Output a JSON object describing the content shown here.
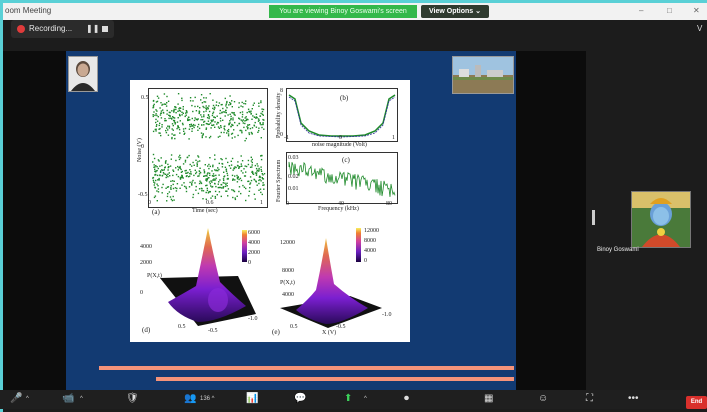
{
  "window": {
    "title": "oom Meeting",
    "controls": [
      "–",
      "□",
      "✕"
    ]
  },
  "share": {
    "banner": "You are viewing Binoy Goswami's screen",
    "view_options": "View Options ⌄"
  },
  "recording": {
    "label": "Recording...",
    "pause": "❚❚"
  },
  "right_edge": {
    "label": "V"
  },
  "figure": {
    "panel_a": {
      "tag": "(a)",
      "ylabel": "Noise (V)",
      "xlabel": "Time (sec)",
      "yticks": [
        "0.5",
        "0.25",
        "0",
        "-0.25",
        "-0.5"
      ],
      "xticks": [
        "0",
        "0.2",
        "0.4",
        "0.6",
        "0.8",
        "1"
      ]
    },
    "panel_b": {
      "tag": "(b)",
      "ylabel": "Probability density",
      "xlabel": "noise magnitude (Volt)",
      "yticks": [
        "8",
        "6",
        "4",
        "2",
        "0"
      ],
      "xticks": [
        "-1",
        "-0.5",
        "0",
        "0.5",
        "1"
      ]
    },
    "panel_c": {
      "tag": "(c)",
      "ylabel": "Fourier Spectrum",
      "xlabel": "Frequency (kHz)",
      "yticks": [
        "0.03",
        "0.02",
        "0.01",
        "0"
      ],
      "xticks": [
        "0",
        "20",
        "40",
        "60",
        "80"
      ]
    },
    "panel_d": {
      "tag": "(d)",
      "ylabel": "P(X,t)",
      "xlabel": "X (V)",
      "cbar": [
        "6000",
        "4000",
        "2000",
        "0"
      ],
      "ticks": [
        "4000",
        "2000",
        "0",
        "0.5",
        "0",
        "-0.5",
        "-1.0"
      ]
    },
    "panel_e": {
      "tag": "(e)",
      "ylabel": "P(X,t)",
      "xlabel": "X (V)",
      "cbar": [
        "12000",
        "8000",
        "4000",
        "0"
      ],
      "ticks": [
        "12000",
        "8000",
        "4000",
        "0.5",
        "0",
        "-0.5",
        "-1.0"
      ]
    }
  },
  "participant": {
    "name": "Binoy Goswami"
  },
  "toolbar": {
    "items": [
      {
        "icon": "🎤",
        "label": "^"
      },
      {
        "icon": "📹",
        "label": "^"
      },
      {
        "icon": "🛡",
        "label": ""
      },
      {
        "icon": "👥",
        "label": "136 ^"
      },
      {
        "icon": "📊",
        "label": ""
      },
      {
        "icon": "💬",
        "label": ""
      },
      {
        "icon": "⬆",
        "label": "^"
      },
      {
        "icon": "⏺",
        "label": ""
      },
      {
        "icon": "▦",
        "label": ""
      },
      {
        "icon": "☺",
        "label": ""
      },
      {
        "icon": "⛶",
        "label": ""
      },
      {
        "icon": "•••",
        "label": ""
      }
    ],
    "end": "End"
  },
  "colors": {
    "slide_bg": "#123a72",
    "share_green": "#33b84a",
    "plot_green": "#1e8a2a",
    "stripe": "#f4937a",
    "end_red": "#d9302c"
  }
}
